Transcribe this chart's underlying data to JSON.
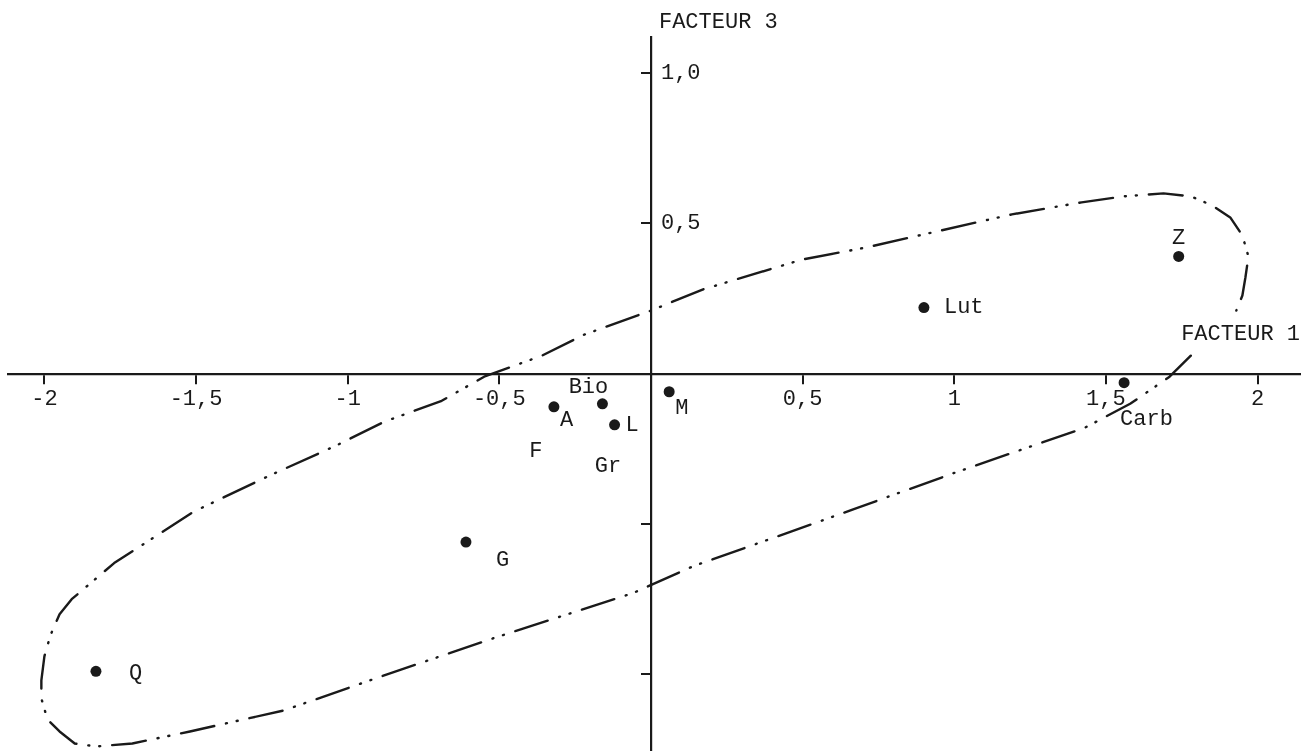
{
  "chart_data": {
    "type": "scatter",
    "xlabel": "FACTEUR 1",
    "ylabel": "FACTEUR 3",
    "xlim": [
      -2.12,
      2.14
    ],
    "ylim": [
      -1.25,
      1.12
    ],
    "xticks": [
      -2,
      {
        "value": -1.5,
        "label": "-1,5"
      },
      -1,
      {
        "value": -0.5,
        "label": "-0,5"
      },
      {
        "value": 0.5,
        "label": "0,5"
      },
      1,
      {
        "value": 1.5,
        "label": "1,5"
      },
      2
    ],
    "yticks": [
      {
        "value": -1,
        "label": null
      },
      {
        "value": -0.5,
        "label": null
      },
      {
        "value": 0.5,
        "label": "0,5"
      },
      {
        "value": 1,
        "label": "1,0"
      }
    ],
    "marker": "circle",
    "series": [
      {
        "name": "Z",
        "color": "#1a1a1a",
        "x": [
          1.74
        ],
        "values": [
          0.39
        ]
      },
      {
        "name": "Lut",
        "color": "#1a1a1a",
        "x": [
          0.9
        ],
        "values": [
          0.22
        ]
      },
      {
        "name": "Carb",
        "color": "#1a1a1a",
        "x": [
          1.56
        ],
        "values": [
          -0.03
        ]
      },
      {
        "name": "M",
        "color": "#1a1a1a",
        "x": [
          0.06
        ],
        "values": [
          -0.06
        ]
      },
      {
        "name": "Bio",
        "color": "#1a1a1a",
        "x": [
          -0.16
        ],
        "values": [
          -0.1
        ]
      },
      {
        "name": "A",
        "color": "#1a1a1a",
        "x": [
          -0.32
        ],
        "values": [
          -0.11
        ]
      },
      {
        "name": "L",
        "color": "#1a1a1a",
        "x": [
          -0.12
        ],
        "values": [
          -0.17
        ]
      },
      {
        "name": "G",
        "color": "#1a1a1a",
        "x": [
          -0.61
        ],
        "values": [
          -0.56
        ]
      },
      {
        "name": "Q",
        "color": "#1a1a1a",
        "x": [
          -1.83
        ],
        "values": [
          -0.99
        ]
      },
      {
        "type": "line",
        "color": "#1a1a1a",
        "line_style": "dashed",
        "marker": "none",
        "x": [
          1.78,
          1.71,
          1.58,
          1.43,
          1.0,
          0.56,
          0.14,
          -0.06,
          -0.52,
          -0.87,
          -1.21,
          -1.52,
          -1.71,
          -1.83,
          -1.9,
          -1.95,
          -1.99,
          -2.01,
          -2.01,
          -2.0,
          -1.98,
          -1.95,
          -1.91,
          -1.84,
          -1.77,
          -1.51,
          -1.26,
          -1.04,
          -0.88,
          -0.69,
          -0.55,
          -0.36,
          -0.22,
          0.0,
          0.17,
          0.5,
          0.71,
          1.19,
          1.42,
          1.56,
          1.69,
          1.78,
          1.85,
          1.91,
          1.95,
          1.97,
          1.96,
          1.95,
          1.93
        ],
        "values": [
          0.06,
          -0.01,
          -0.1,
          -0.18,
          -0.33,
          -0.49,
          -0.64,
          -0.73,
          -0.88,
          -1.0,
          -1.12,
          -1.19,
          -1.23,
          -1.24,
          -1.23,
          -1.19,
          -1.15,
          -1.08,
          -1.02,
          -0.94,
          -0.87,
          -0.8,
          -0.75,
          -0.69,
          -0.63,
          -0.46,
          -0.34,
          -0.24,
          -0.16,
          -0.09,
          -0.01,
          0.06,
          0.13,
          0.21,
          0.28,
          0.38,
          0.42,
          0.53,
          0.57,
          0.59,
          0.6,
          0.59,
          0.56,
          0.52,
          0.46,
          0.39,
          0.32,
          0.26,
          0.21
        ]
      }
    ],
    "annotations": [
      "F",
      "Gr"
    ]
  }
}
